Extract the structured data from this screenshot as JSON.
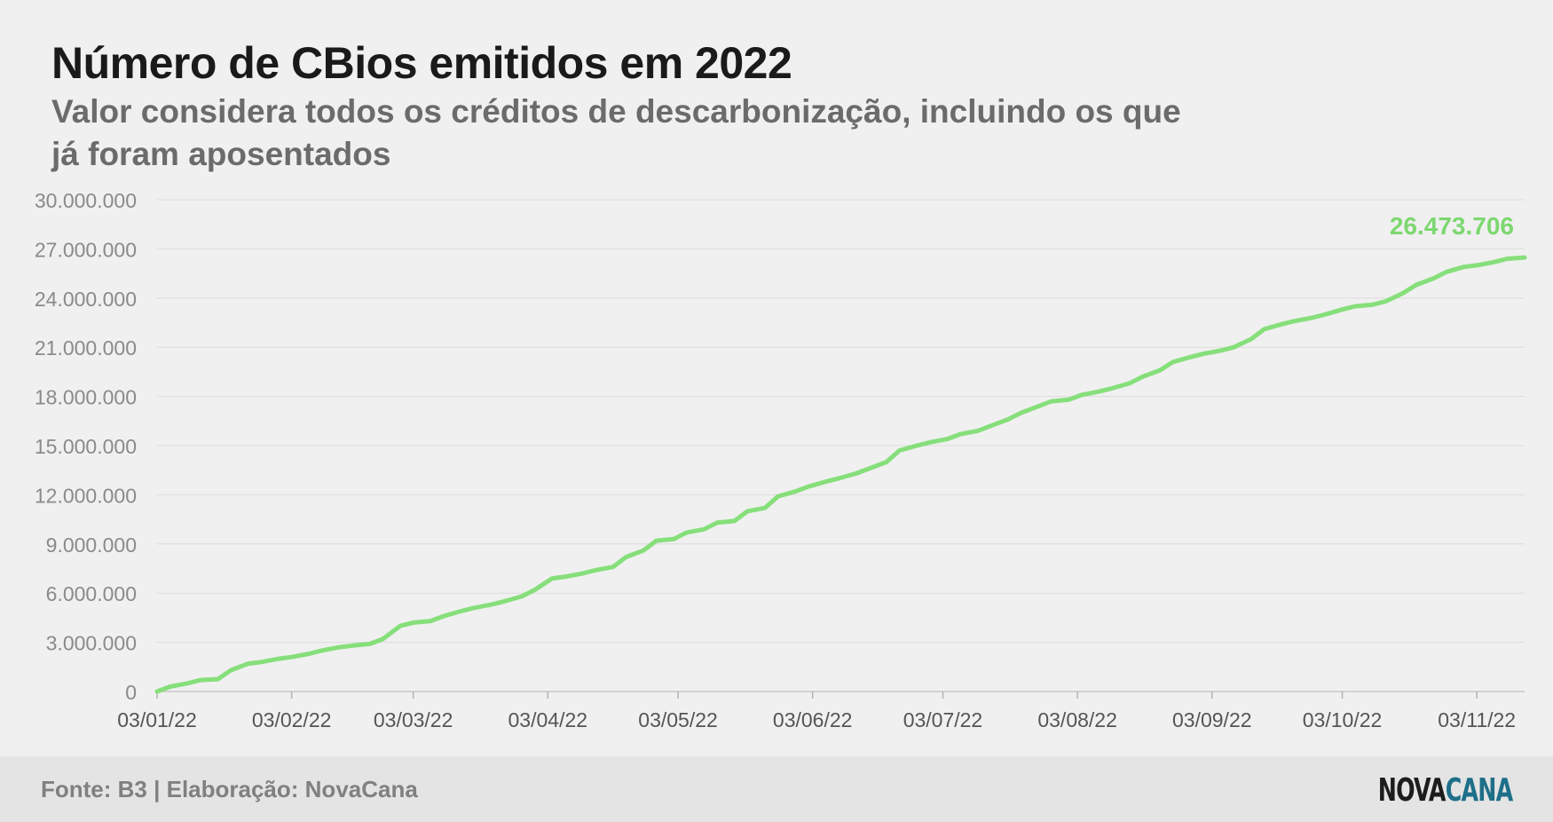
{
  "title": "Número de CBios emitidos em 2022",
  "subtitle": "Valor considera todos os créditos de descarbonização, incluindo os que já foram aposentados",
  "footer": {
    "source": "Fonte: B3 | Elaboração: NovaCana",
    "logo_part1": "NOVA",
    "logo_part2": "CANA"
  },
  "colors": {
    "line": "#86df7a",
    "label": "#7dd770",
    "logo_accent": "#1e6f89"
  },
  "chart_data": {
    "type": "line",
    "title": "Número de CBios emitidos em 2022",
    "xlabel": "",
    "ylabel": "",
    "ylim": [
      0,
      30000000
    ],
    "yticks": [
      0,
      3000000,
      6000000,
      9000000,
      12000000,
      15000000,
      18000000,
      21000000,
      24000000,
      27000000,
      30000000
    ],
    "ytick_labels": [
      "0",
      "3.000.000",
      "6.000.000",
      "9.000.000",
      "12.000.000",
      "15.000.000",
      "18.000.000",
      "21.000.000",
      "24.000.000",
      "27.000.000",
      "30.000.000"
    ],
    "xlim": [
      "2022-01-03",
      "2022-11-14"
    ],
    "xticks": [
      "2022-01-03",
      "2022-02-03",
      "2022-03-03",
      "2022-04-03",
      "2022-05-03",
      "2022-06-03",
      "2022-07-03",
      "2022-08-03",
      "2022-09-03",
      "2022-10-03",
      "2022-11-03"
    ],
    "xtick_labels": [
      "03/01/22",
      "03/02/22",
      "03/03/22",
      "03/04/22",
      "03/05/22",
      "03/06/22",
      "03/07/22",
      "03/08/22",
      "03/09/22",
      "03/10/22",
      "03/11/22"
    ],
    "grid": true,
    "end_label": "26.473.706",
    "series": [
      {
        "x": [
          "2022-01-03",
          "2022-01-06",
          "2022-01-10",
          "2022-01-13",
          "2022-01-17",
          "2022-01-20",
          "2022-01-24",
          "2022-01-27",
          "2022-01-31",
          "2022-02-03",
          "2022-02-07",
          "2022-02-10",
          "2022-02-14",
          "2022-02-17",
          "2022-02-21",
          "2022-02-24",
          "2022-02-28",
          "2022-03-03",
          "2022-03-07",
          "2022-03-10",
          "2022-03-14",
          "2022-03-17",
          "2022-03-21",
          "2022-03-24",
          "2022-03-28",
          "2022-03-31",
          "2022-04-04",
          "2022-04-07",
          "2022-04-11",
          "2022-04-14",
          "2022-04-18",
          "2022-04-21",
          "2022-04-25",
          "2022-04-28",
          "2022-05-02",
          "2022-05-05",
          "2022-05-09",
          "2022-05-12",
          "2022-05-16",
          "2022-05-19",
          "2022-05-23",
          "2022-05-26",
          "2022-05-30",
          "2022-06-02",
          "2022-06-06",
          "2022-06-09",
          "2022-06-13",
          "2022-06-16",
          "2022-06-20",
          "2022-06-23",
          "2022-06-27",
          "2022-06-30",
          "2022-07-04",
          "2022-07-07",
          "2022-07-11",
          "2022-07-14",
          "2022-07-18",
          "2022-07-21",
          "2022-07-25",
          "2022-07-28",
          "2022-08-01",
          "2022-08-04",
          "2022-08-08",
          "2022-08-11",
          "2022-08-15",
          "2022-08-18",
          "2022-08-22",
          "2022-08-25",
          "2022-08-29",
          "2022-09-01",
          "2022-09-05",
          "2022-09-08",
          "2022-09-12",
          "2022-09-15",
          "2022-09-19",
          "2022-09-22",
          "2022-09-26",
          "2022-09-29",
          "2022-10-03",
          "2022-10-06",
          "2022-10-10",
          "2022-10-13",
          "2022-10-17",
          "2022-10-20",
          "2022-10-24",
          "2022-10-27",
          "2022-10-31",
          "2022-11-03",
          "2022-11-07",
          "2022-11-10",
          "2022-11-14"
        ],
        "values": [
          0,
          300000,
          500000,
          700000,
          750000,
          1300000,
          1700000,
          1800000,
          2000000,
          2100000,
          2300000,
          2500000,
          2700000,
          2800000,
          2900000,
          3200000,
          4000000,
          4200000,
          4300000,
          4600000,
          4900000,
          5100000,
          5300000,
          5500000,
          5800000,
          6200000,
          6900000,
          7000000,
          7200000,
          7400000,
          7600000,
          8200000,
          8600000,
          9200000,
          9300000,
          9700000,
          9900000,
          10300000,
          10400000,
          11000000,
          11200000,
          11900000,
          12200000,
          12500000,
          12800000,
          13000000,
          13300000,
          13600000,
          14000000,
          14700000,
          15000000,
          15200000,
          15400000,
          15700000,
          15900000,
          16200000,
          16600000,
          17000000,
          17400000,
          17700000,
          17800000,
          18100000,
          18300000,
          18500000,
          18800000,
          19200000,
          19600000,
          20100000,
          20400000,
          20600000,
          20800000,
          21000000,
          21500000,
          22100000,
          22400000,
          22600000,
          22800000,
          23000000,
          23300000,
          23500000,
          23600000,
          23800000,
          24300000,
          24800000,
          25200000,
          25600000,
          25900000,
          26000000,
          26200000,
          26400000,
          26473706
        ]
      }
    ]
  }
}
